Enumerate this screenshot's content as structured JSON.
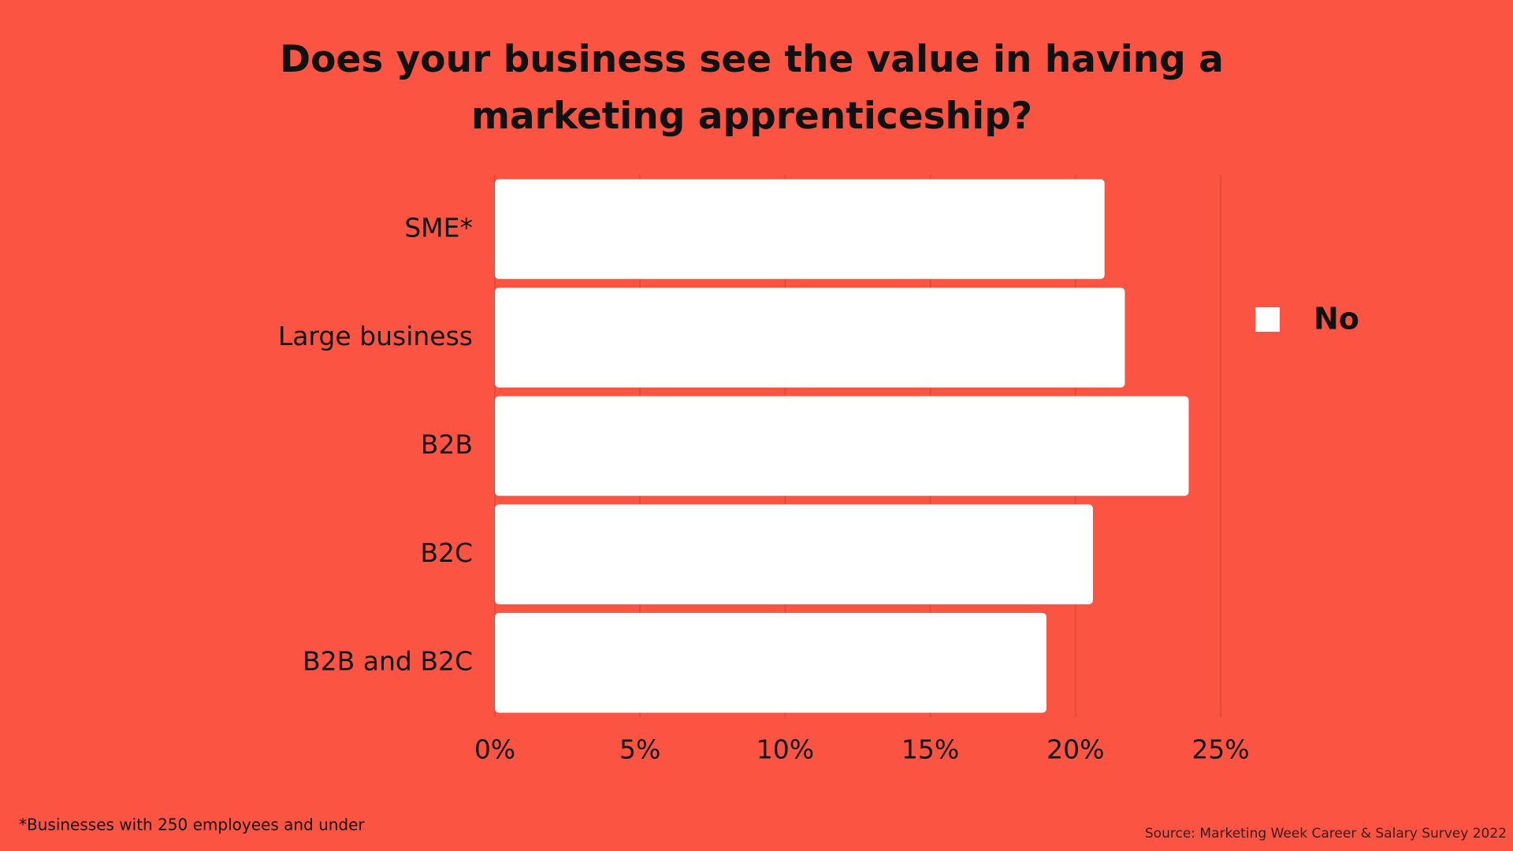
{
  "chart_data": {
    "type": "bar",
    "orientation": "horizontal",
    "title": "Does your business see the value in having a marketing apprenticeship?",
    "categories": [
      "SME*",
      "Large business",
      "B2B",
      "B2C",
      "B2B and B2C"
    ],
    "series": [
      {
        "name": "No",
        "color": "#ffffff",
        "values": [
          21.0,
          21.7,
          23.9,
          20.6,
          19.0
        ]
      }
    ],
    "xlim": [
      0,
      25
    ],
    "xticks": [
      {
        "value": 0,
        "label": "0%"
      },
      {
        "value": 5,
        "label": "5%"
      },
      {
        "value": 10,
        "label": "10%"
      },
      {
        "value": 15,
        "label": "15%"
      },
      {
        "value": 20,
        "label": "20%"
      },
      {
        "value": 25,
        "label": "25%"
      }
    ],
    "grid": true,
    "legend": "right",
    "footnote": "*Businesses with 250 employees and under",
    "source": "Source: Marketing Week Career & Salary Survey 2022"
  }
}
